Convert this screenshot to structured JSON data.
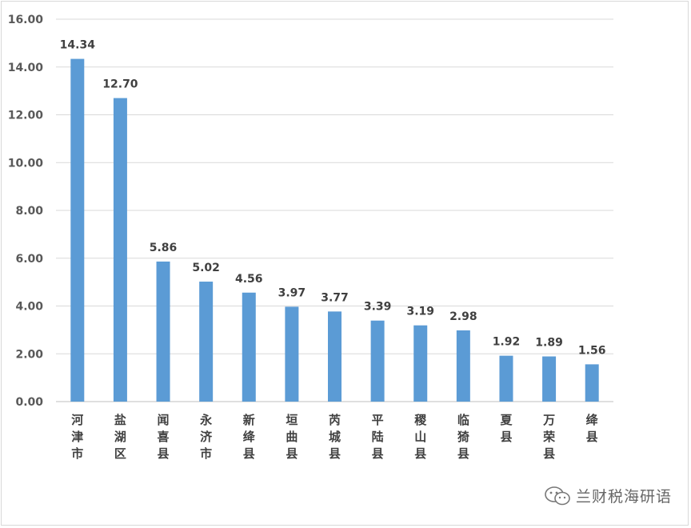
{
  "chart_data": {
    "type": "bar",
    "categories": [
      "河津市",
      "盐湖区",
      "闻喜县",
      "永济市",
      "新绛县",
      "垣曲县",
      "芮城县",
      "平陆县",
      "稷山县",
      "临猗县",
      "夏县",
      "万荣县",
      "绛县"
    ],
    "values": [
      14.34,
      12.7,
      5.86,
      5.02,
      4.56,
      3.97,
      3.77,
      3.39,
      3.19,
      2.98,
      1.92,
      1.89,
      1.56
    ],
    "value_labels": [
      "14.34",
      "12.70",
      "5.86",
      "5.02",
      "4.56",
      "3.97",
      "3.77",
      "3.39",
      "3.19",
      "2.98",
      "1.92",
      "1.89",
      "1.56"
    ],
    "ylim": [
      0,
      16
    ],
    "yticks": [
      "0.00",
      "2.00",
      "4.00",
      "6.00",
      "8.00",
      "10.00",
      "12.00",
      "14.00",
      "16.00"
    ],
    "grid": true,
    "bar_color": "#5b9bd5"
  },
  "watermark": {
    "text": "兰财税海研语",
    "icon": "wechat-icon"
  }
}
